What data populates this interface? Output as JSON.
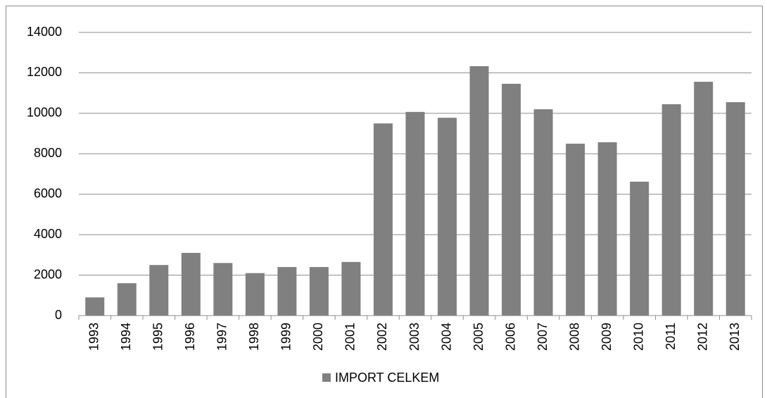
{
  "chart_data": {
    "type": "bar",
    "categories": [
      "1993",
      "1994",
      "1995",
      "1996",
      "1997",
      "1998",
      "1999",
      "2000",
      "2001",
      "2002",
      "2003",
      "2004",
      "2005",
      "2006",
      "2007",
      "2008",
      "2009",
      "2010",
      "2011",
      "2012",
      "2013"
    ],
    "series": [
      {
        "name": "IMPORT CELKEM",
        "color": "#808080",
        "values": [
          900,
          1600,
          2500,
          3100,
          2600,
          2100,
          2400,
          2400,
          2650,
          9500,
          10070,
          9780,
          12330,
          11460,
          10200,
          8500,
          8570,
          6620,
          10450,
          11560,
          10550
        ]
      }
    ],
    "ylim": [
      0,
      14000
    ],
    "yticks": [
      0,
      2000,
      4000,
      6000,
      8000,
      10000,
      12000,
      14000
    ],
    "grid": true,
    "legend": "bottom"
  }
}
